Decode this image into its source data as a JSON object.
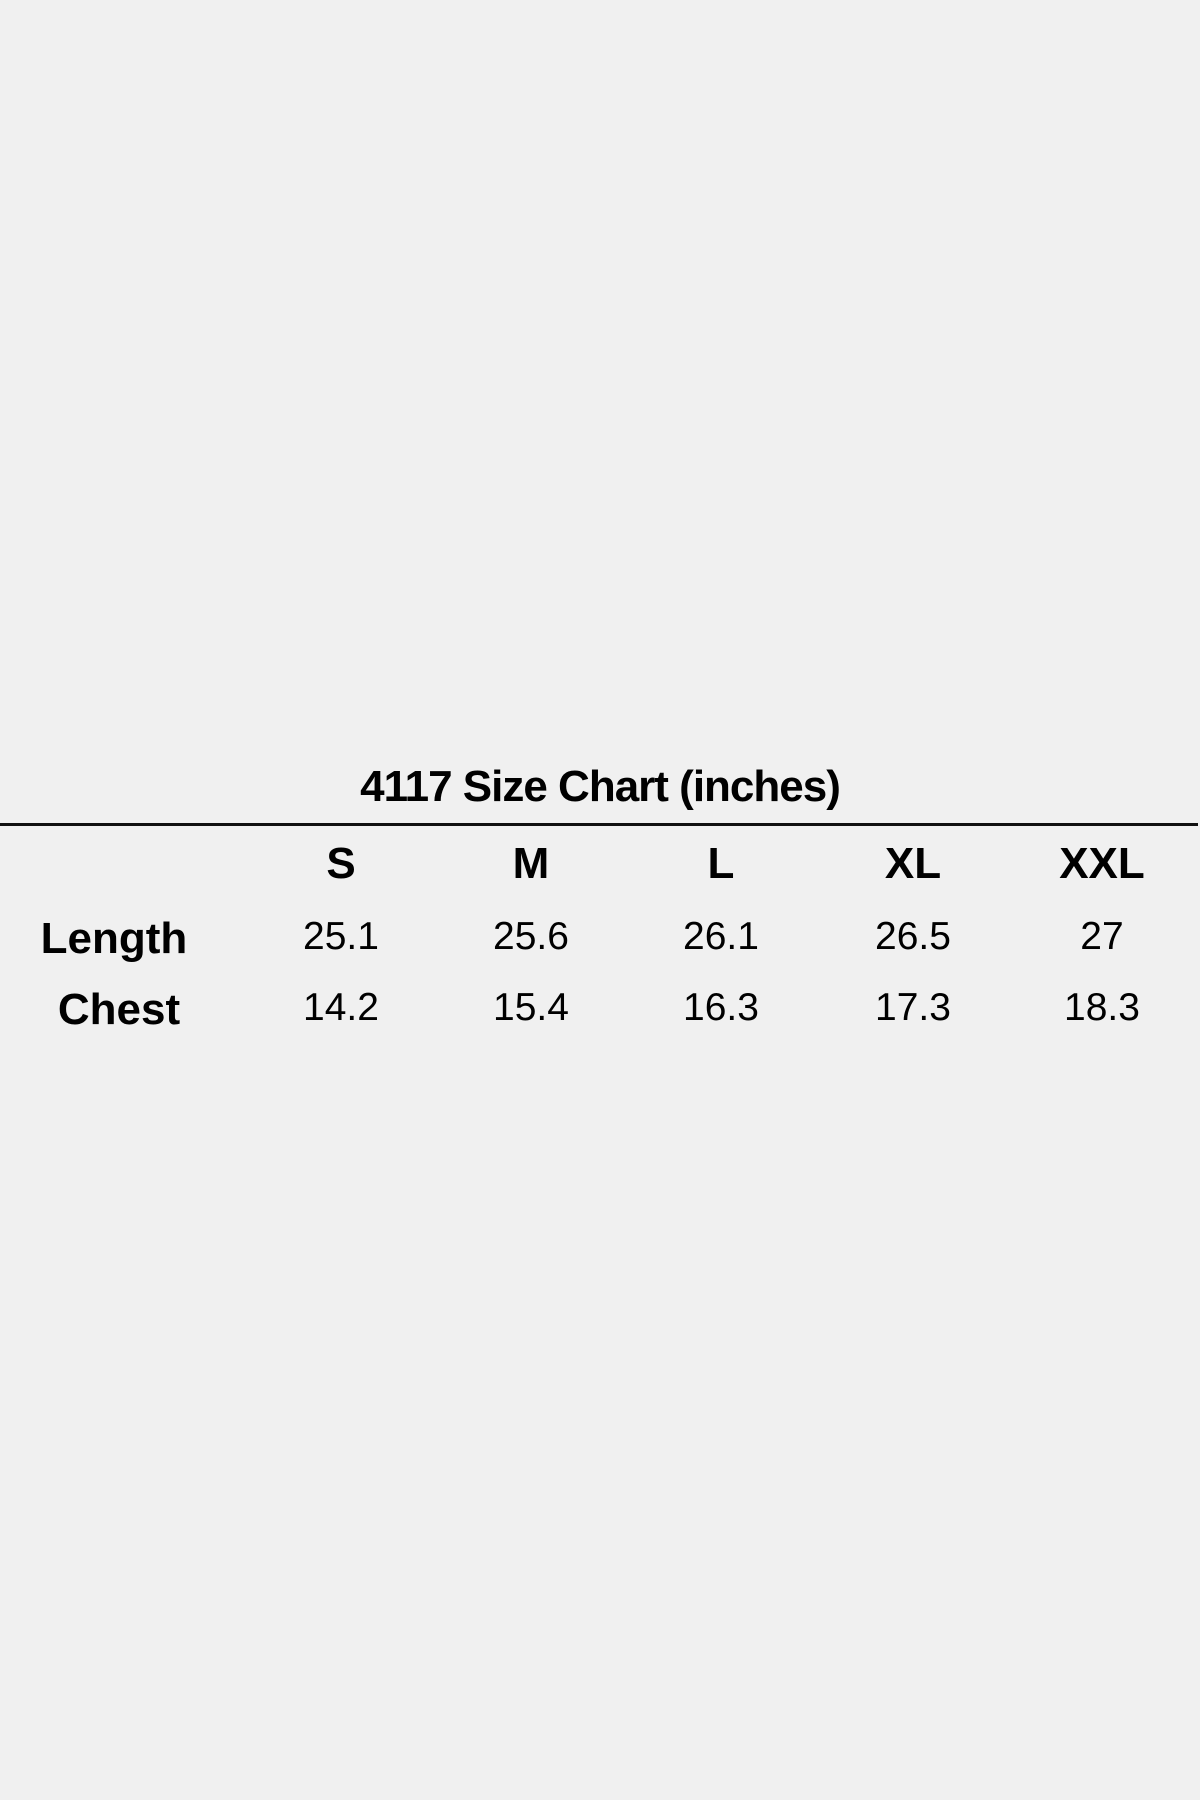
{
  "title": "4117 Size Chart (inches)",
  "sizes": [
    "S",
    "M",
    "L",
    "XL",
    "XXL"
  ],
  "rows": [
    {
      "label": "Length",
      "values": [
        "25.1",
        "25.6",
        "26.1",
        "26.5",
        "27"
      ]
    },
    {
      "label": "Chest",
      "values": [
        "14.2",
        "15.4",
        "16.3",
        "17.3",
        "18.3"
      ]
    }
  ]
}
